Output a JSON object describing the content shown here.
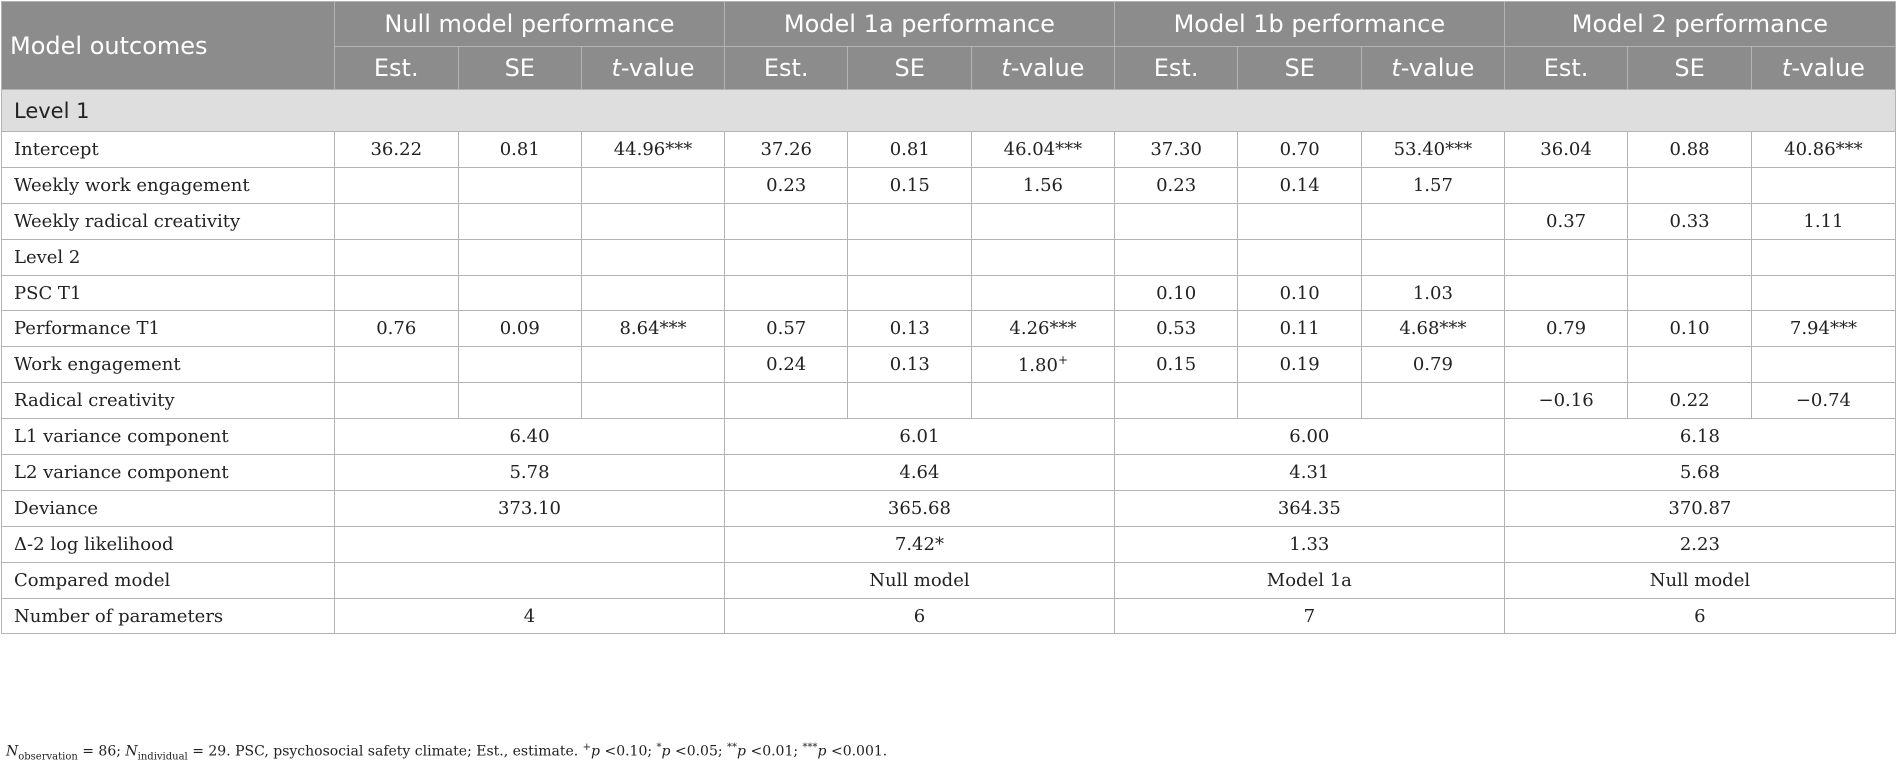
{
  "header": {
    "model_outcomes": "Model outcomes",
    "groups": [
      "Null model performance",
      "Model 1a performance",
      "Model 1b performance",
      "Model 2 performance"
    ],
    "sub": {
      "est": "Est.",
      "se": "SE",
      "t_italic": "t",
      "t_rest": "-value"
    }
  },
  "section": "Level 1",
  "rows": [
    {
      "label": "Intercept",
      "cells": [
        "36.22",
        "0.81",
        "44.96***",
        "37.26",
        "0.81",
        "46.04***",
        "37.30",
        "0.70",
        "53.40***",
        "36.04",
        "0.88",
        "40.86***"
      ]
    },
    {
      "label": "Weekly work engagement",
      "cells": [
        "",
        "",
        "",
        "0.23",
        "0.15",
        "1.56",
        "0.23",
        "0.14",
        "1.57",
        "",
        "",
        ""
      ]
    },
    {
      "label": "Weekly radical creativity",
      "cells": [
        "",
        "",
        "",
        "",
        "",
        "",
        "",
        "",
        "",
        "0.37",
        "0.33",
        "1.11"
      ]
    },
    {
      "label": "Level 2",
      "cells": [
        "",
        "",
        "",
        "",
        "",
        "",
        "",
        "",
        "",
        "",
        "",
        ""
      ]
    },
    {
      "label": "PSC T1",
      "cells": [
        "",
        "",
        "",
        "",
        "",
        "",
        "0.10",
        "0.10",
        "1.03",
        "",
        "",
        ""
      ]
    },
    {
      "label": "Performance T1",
      "cells": [
        "0.76",
        "0.09",
        "8.64***",
        "0.57",
        "0.13",
        "4.26***",
        "0.53",
        "0.11",
        "4.68***",
        "0.79",
        "0.10",
        "7.94***"
      ]
    },
    {
      "label": "Work engagement",
      "cells": [
        "",
        "",
        "",
        "0.24",
        "0.13",
        "1.80",
        "0.15",
        "0.19",
        "0.79",
        "",
        "",
        ""
      ],
      "marks": [
        "",
        "",
        "",
        "",
        "",
        "+",
        "",
        "",
        "",
        "",
        "",
        ""
      ]
    },
    {
      "label": "Radical creativity",
      "cells": [
        "",
        "",
        "",
        "",
        "",
        "",
        "",
        "",
        "",
        "−0.16",
        "0.22",
        "−0.74"
      ]
    }
  ],
  "summary": [
    {
      "label": "L1 variance component",
      "cells": [
        "6.40",
        "6.01",
        "6.00",
        "6.18"
      ]
    },
    {
      "label": "L2 variance component",
      "cells": [
        "5.78",
        "4.64",
        "4.31",
        "5.68"
      ]
    },
    {
      "label": "Deviance",
      "cells": [
        "373.10",
        "365.68",
        "364.35",
        "370.87"
      ]
    },
    {
      "label": "Δ-2 log likelihood",
      "cells": [
        "",
        "7.42*",
        "1.33",
        "2.23"
      ]
    },
    {
      "label": "Compared model",
      "cells": [
        "",
        "Null model",
        "Model 1a",
        "Null model"
      ]
    },
    {
      "label": "Number of parameters",
      "cells": [
        "4",
        "6",
        "7",
        "6"
      ]
    }
  ],
  "note": {
    "n": "N",
    "obs_sub": "observation",
    "obs_val": " = 86; ",
    "ind_sub": "individual",
    "ind_val": " = 29. PSC, psychosocial safety climate; Est., estimate. ",
    "plus": "+",
    "p": "p",
    "lt010": " <0.10; ",
    "star1": "*",
    "lt005": " <0.05; ",
    "star2": "**",
    "lt001": " <0.01; ",
    "star3": "***",
    "lt0001": " <0.001."
  }
}
